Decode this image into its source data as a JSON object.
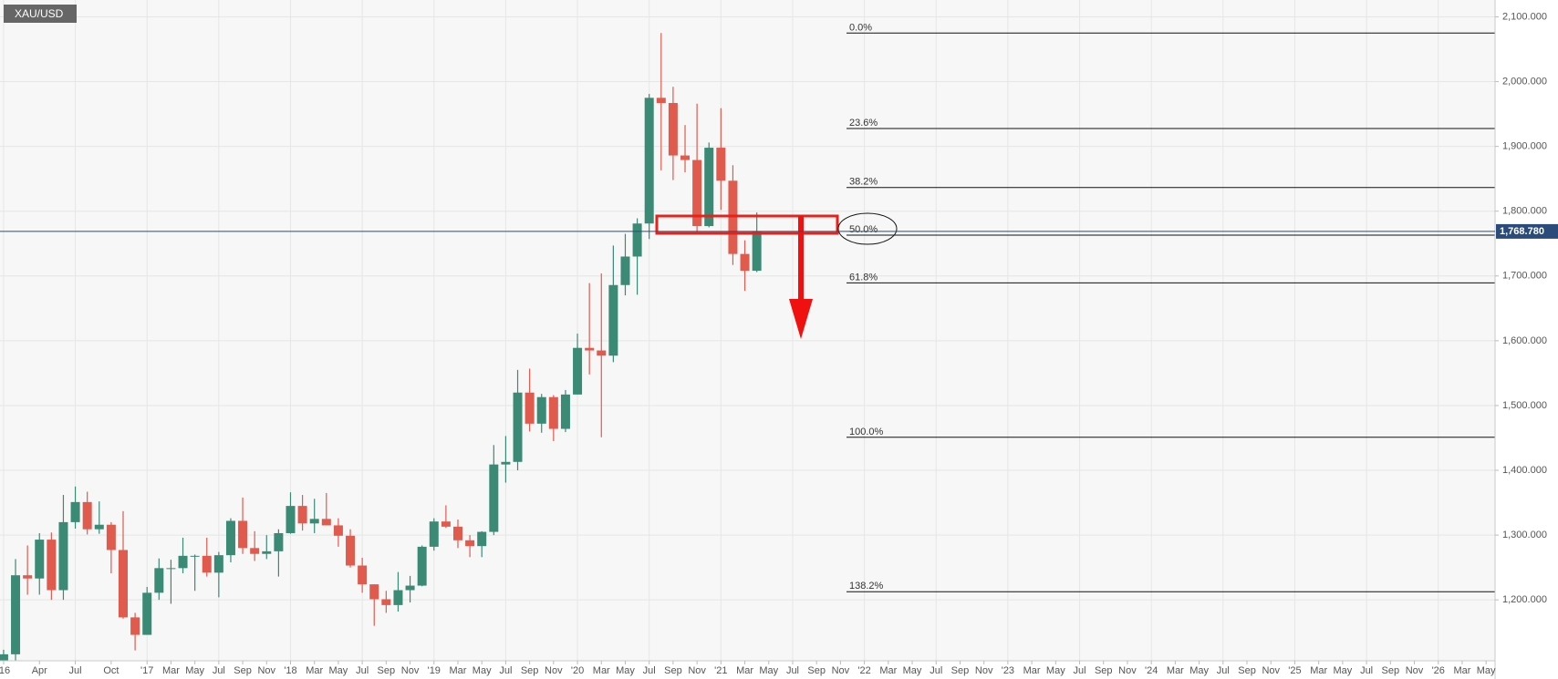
{
  "chart_data": {
    "type": "candlestick",
    "title": "XAU/USD",
    "up_color": "#3b8a76",
    "down_color": "#e05a4e",
    "series": {
      "open": [
        1061,
        1116,
        1238,
        1233,
        1293,
        1215,
        1320,
        1351,
        1309,
        1316,
        1277,
        1173,
        1146,
        1211,
        1249,
        1249,
        1268,
        1268,
        1242,
        1269,
        1322,
        1280,
        1271,
        1275,
        1303,
        1345,
        1318,
        1325,
        1315,
        1299,
        1253,
        1224,
        1201,
        1192,
        1215,
        1222,
        1282,
        1321,
        1313,
        1292,
        1283,
        1305,
        1409,
        1413,
        1520,
        1472,
        1513,
        1464,
        1517,
        1589,
        1585,
        1577,
        1686,
        1730,
        1781,
        1975,
        1967,
        1886,
        1879,
        1777,
        1898,
        1847,
        1734,
        1708
      ],
      "high": [
        1123,
        1263,
        1284,
        1303,
        1304,
        1362,
        1375,
        1367,
        1352,
        1320,
        1337,
        1180,
        1220,
        1264,
        1262,
        1296,
        1270,
        1296,
        1274,
        1326,
        1358,
        1306,
        1300,
        1309,
        1366,
        1362,
        1356,
        1365,
        1326,
        1309,
        1265,
        1224,
        1214,
        1243,
        1237,
        1284,
        1326,
        1346,
        1324,
        1300,
        1306,
        1439,
        1453,
        1555,
        1557,
        1518,
        1516,
        1524,
        1611,
        1689,
        1704,
        1747,
        1765,
        1789,
        1981,
        2075,
        1992,
        1933,
        1966,
        1906,
        1959,
        1871,
        1755,
        1798
      ],
      "low": [
        1061,
        1106,
        1208,
        1208,
        1200,
        1200,
        1310,
        1301,
        1302,
        1241,
        1171,
        1122,
        1146,
        1200,
        1194,
        1241,
        1214,
        1236,
        1204,
        1258,
        1271,
        1260,
        1263,
        1236,
        1302,
        1307,
        1303,
        1315,
        1282,
        1250,
        1211,
        1160,
        1180,
        1182,
        1196,
        1221,
        1276,
        1311,
        1280,
        1266,
        1266,
        1300,
        1381,
        1400,
        1460,
        1458,
        1445,
        1459,
        1517,
        1548,
        1451,
        1567,
        1670,
        1671,
        1757,
        1863,
        1848,
        1860,
        1764,
        1775,
        1802,
        1717,
        1677,
        1706
      ],
      "close": [
        1116,
        1238,
        1233,
        1293,
        1215,
        1320,
        1351,
        1309,
        1316,
        1277,
        1173,
        1146,
        1211,
        1249,
        1249,
        1268,
        1268,
        1242,
        1269,
        1322,
        1280,
        1271,
        1275,
        1303,
        1345,
        1318,
        1325,
        1315,
        1299,
        1253,
        1224,
        1201,
        1192,
        1215,
        1222,
        1282,
        1321,
        1313,
        1292,
        1283,
        1305,
        1409,
        1413,
        1520,
        1472,
        1513,
        1464,
        1517,
        1589,
        1585,
        1577,
        1686,
        1730,
        1781,
        1975,
        1967,
        1886,
        1879,
        1777,
        1898,
        1847,
        1734,
        1708,
        1769
      ]
    },
    "xlim": [
      -0.3,
      124.75
    ],
    "xticks": [
      {
        "value": 0,
        "label": "'16"
      },
      {
        "value": 3,
        "label": "Apr"
      },
      {
        "value": 6,
        "label": "Jul"
      },
      {
        "value": 9,
        "label": "Oct"
      },
      {
        "value": 12,
        "label": "'17"
      },
      {
        "value": 14,
        "label": "Mar"
      },
      {
        "value": 16,
        "label": "May"
      },
      {
        "value": 18,
        "label": "Jul"
      },
      {
        "value": 20,
        "label": "Sep"
      },
      {
        "value": 22,
        "label": "Nov"
      },
      {
        "value": 24,
        "label": "'18"
      },
      {
        "value": 26,
        "label": "Mar"
      },
      {
        "value": 28,
        "label": "May"
      },
      {
        "value": 30,
        "label": "Jul"
      },
      {
        "value": 32,
        "label": "Sep"
      },
      {
        "value": 34,
        "label": "Nov"
      },
      {
        "value": 36,
        "label": "'19"
      },
      {
        "value": 38,
        "label": "Mar"
      },
      {
        "value": 40,
        "label": "May"
      },
      {
        "value": 42,
        "label": "Jul"
      },
      {
        "value": 44,
        "label": "Sep"
      },
      {
        "value": 46,
        "label": "Nov"
      },
      {
        "value": 48,
        "label": "'20"
      },
      {
        "value": 50,
        "label": "Mar"
      },
      {
        "value": 52,
        "label": "May"
      },
      {
        "value": 54,
        "label": "Jul"
      },
      {
        "value": 56,
        "label": "Sep"
      },
      {
        "value": 58,
        "label": "Nov"
      },
      {
        "value": 60,
        "label": "'21"
      },
      {
        "value": 62,
        "label": "Mar"
      },
      {
        "value": 64,
        "label": "May"
      },
      {
        "value": 66,
        "label": "Jul"
      },
      {
        "value": 68,
        "label": "Sep"
      },
      {
        "value": 70,
        "label": "Nov"
      },
      {
        "value": 72,
        "label": "'22"
      },
      {
        "value": 74,
        "label": "Mar"
      },
      {
        "value": 76,
        "label": "May"
      },
      {
        "value": 78,
        "label": "Jul"
      },
      {
        "value": 80,
        "label": "Sep"
      },
      {
        "value": 82,
        "label": "Nov"
      },
      {
        "value": 84,
        "label": "'23"
      },
      {
        "value": 86,
        "label": "Mar"
      },
      {
        "value": 88,
        "label": "May"
      },
      {
        "value": 90,
        "label": "Jul"
      },
      {
        "value": 92,
        "label": "Sep"
      },
      {
        "value": 94,
        "label": "Nov"
      },
      {
        "value": 96,
        "label": "'24"
      },
      {
        "value": 98,
        "label": "Mar"
      },
      {
        "value": 100,
        "label": "May"
      },
      {
        "value": 102,
        "label": "Jul"
      },
      {
        "value": 104,
        "label": "Sep"
      },
      {
        "value": 106,
        "label": "Nov"
      },
      {
        "value": 108,
        "label": "'25"
      },
      {
        "value": 110,
        "label": "Mar"
      },
      {
        "value": 112,
        "label": "May"
      },
      {
        "value": 114,
        "label": "Jul"
      },
      {
        "value": 116,
        "label": "Sep"
      },
      {
        "value": 118,
        "label": "Nov"
      },
      {
        "value": 120,
        "label": "'26"
      },
      {
        "value": 122,
        "label": "Mar"
      },
      {
        "value": 124,
        "label": "May"
      }
    ],
    "ylim": [
      1106,
      2126
    ],
    "yticks": [
      {
        "value": 1200,
        "label": "1,200.000"
      },
      {
        "value": 1300,
        "label": "1,300.000"
      },
      {
        "value": 1400,
        "label": "1,400.000"
      },
      {
        "value": 1500,
        "label": "1,500.000"
      },
      {
        "value": 1600,
        "label": "1,600.000"
      },
      {
        "value": 1700,
        "label": "1,700.000"
      },
      {
        "value": 1800,
        "label": "1,800.000"
      },
      {
        "value": 1900,
        "label": "1,900.000"
      },
      {
        "value": 2000,
        "label": "2,000.000"
      },
      {
        "value": 2100,
        "label": "2,100.000"
      }
    ],
    "grid": true,
    "current_price": {
      "value": 1768.78,
      "label": "1,768.780"
    },
    "fib_levels": [
      {
        "label": "0.0%",
        "value": 2075
      },
      {
        "label": "23.6%",
        "value": 1927.7
      },
      {
        "label": "38.2%",
        "value": 1836.6
      },
      {
        "label": "50.0%",
        "value": 1763
      },
      {
        "label": "61.8%",
        "value": 1689.4
      },
      {
        "label": "100.0%",
        "value": 1451
      },
      {
        "label": "138.2%",
        "value": 1212.6
      }
    ]
  }
}
